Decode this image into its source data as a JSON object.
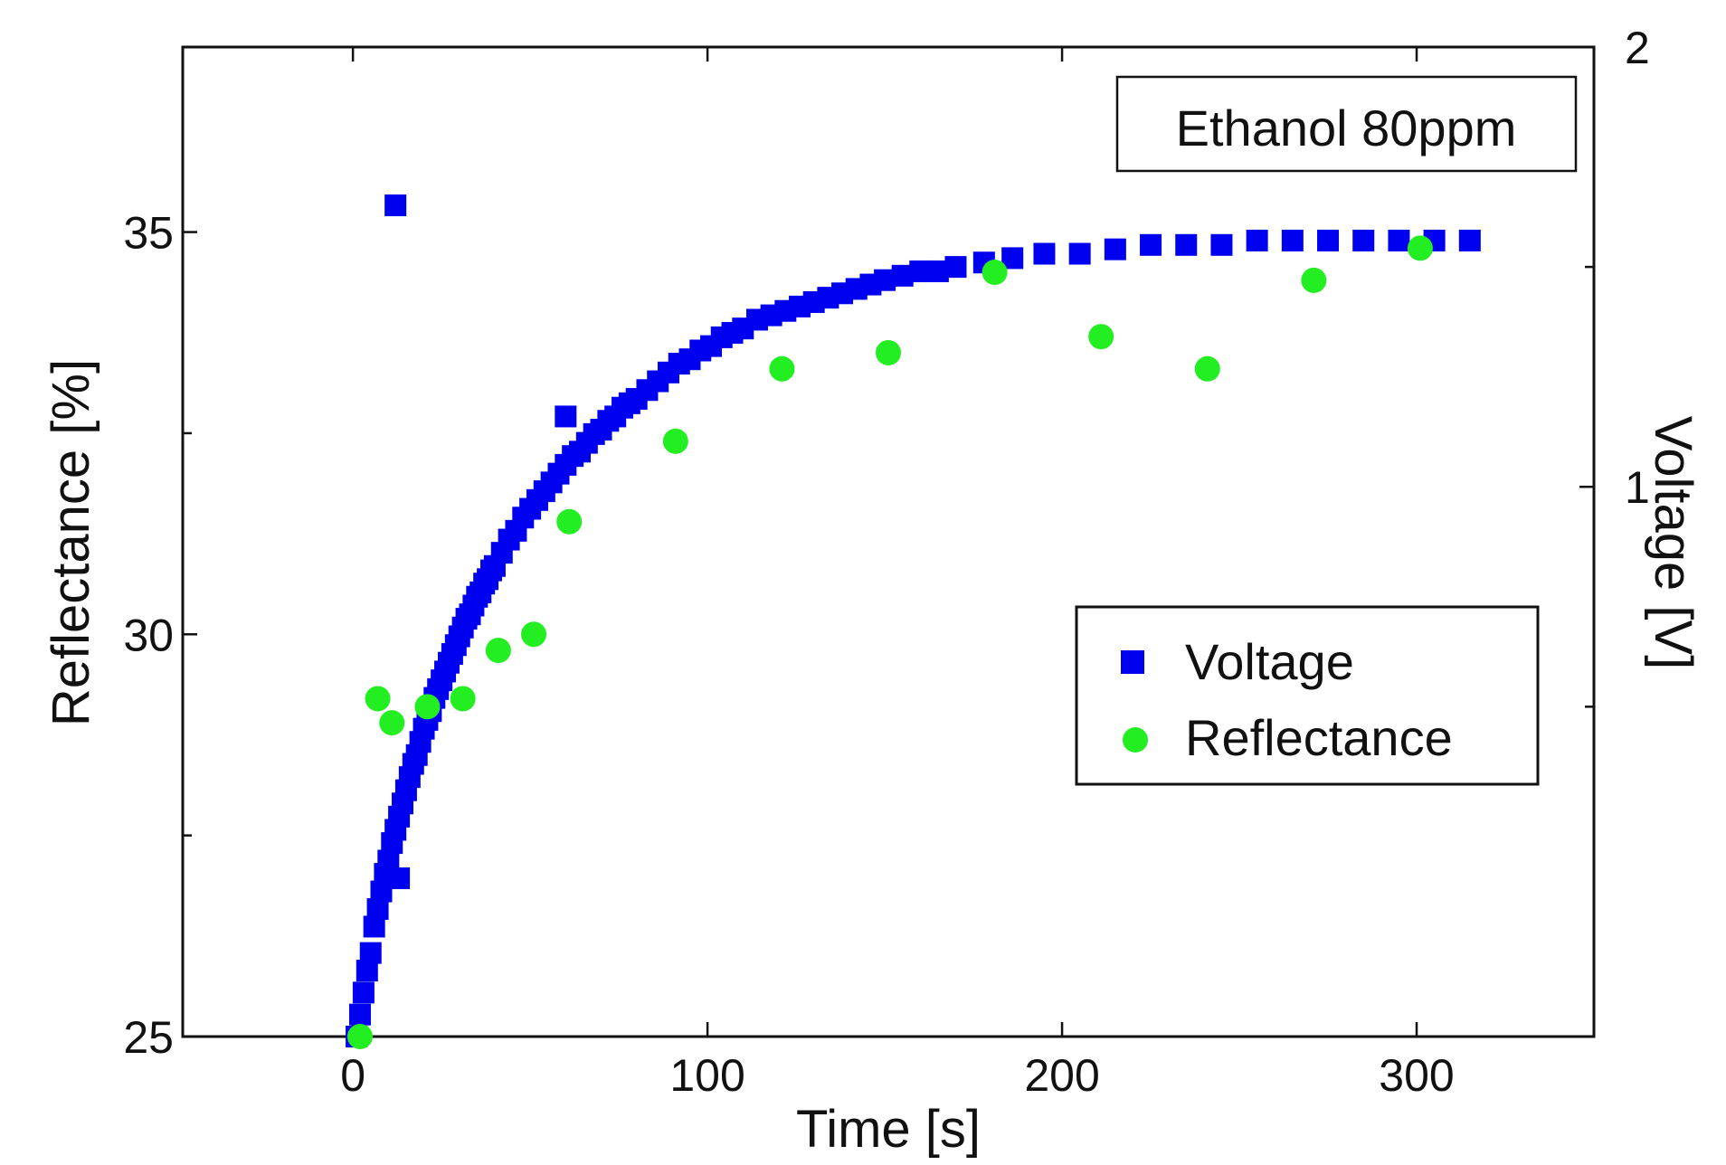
{
  "chart_data": {
    "type": "scatter",
    "title": "",
    "annotation": "Ethanol 80ppm",
    "xlabel": "Time [s]",
    "ylabel": "Reflectance [%]",
    "y2label": "Voltage [V]",
    "xlim": [
      -48,
      350
    ],
    "ylim": [
      25,
      37.3
    ],
    "y2lim": [
      -0.25,
      2
    ],
    "xticks": [
      0,
      100,
      200,
      300
    ],
    "yticks": [
      25,
      30,
      35
    ],
    "yminor_ticks": [
      27.5,
      32.5
    ],
    "y2ticks": [
      1,
      2
    ],
    "y2minor_ticks": [
      0.5,
      1.5
    ],
    "xtick_labels": [
      "0",
      "100",
      "200",
      "300"
    ],
    "ytick_labels": [
      "25",
      "30",
      "35"
    ],
    "y2tick_labels": [
      "1",
      "2"
    ],
    "legend": {
      "position": "right-middle",
      "entries": [
        {
          "label": "Voltage",
          "marker": "square",
          "color": "#0000f0"
        },
        {
          "label": "Reflectance",
          "marker": "circle",
          "color": "#22ee22"
        }
      ]
    },
    "series": [
      {
        "name": "Voltage",
        "axis": "right",
        "marker": "square",
        "color": "#0000f0",
        "x": [
          1,
          2,
          3,
          4,
          5,
          6,
          7,
          8,
          9,
          10,
          11,
          12,
          13,
          14,
          15,
          16,
          17,
          18,
          19,
          20,
          21,
          22,
          23,
          24,
          25,
          26,
          27,
          28,
          29,
          30,
          31,
          32,
          33,
          34,
          35,
          36,
          37,
          38,
          39,
          40,
          42,
          44,
          46,
          48,
          50,
          52,
          54,
          56,
          58,
          60,
          62,
          64,
          66,
          68,
          70,
          72,
          74,
          76,
          78,
          80,
          83,
          86,
          89,
          92,
          95,
          98,
          101,
          104,
          107,
          110,
          114,
          118,
          122,
          126,
          130,
          134,
          138,
          142,
          146,
          150,
          155,
          160,
          165,
          170,
          178,
          186,
          195,
          205,
          215,
          225,
          235,
          245,
          255,
          265,
          275,
          285,
          295,
          305,
          315,
          12,
          60,
          13
        ],
        "y": [
          -0.25,
          -0.2,
          -0.15,
          -0.1,
          -0.06,
          0.0,
          0.04,
          0.08,
          0.12,
          0.15,
          0.19,
          0.22,
          0.25,
          0.28,
          0.31,
          0.34,
          0.37,
          0.39,
          0.42,
          0.45,
          0.47,
          0.49,
          0.52,
          0.54,
          0.56,
          0.58,
          0.6,
          0.62,
          0.64,
          0.66,
          0.68,
          0.7,
          0.71,
          0.73,
          0.75,
          0.76,
          0.78,
          0.79,
          0.81,
          0.82,
          0.85,
          0.88,
          0.9,
          0.93,
          0.95,
          0.97,
          0.99,
          1.01,
          1.03,
          1.05,
          1.07,
          1.08,
          1.1,
          1.12,
          1.13,
          1.15,
          1.16,
          1.18,
          1.19,
          1.2,
          1.22,
          1.24,
          1.26,
          1.28,
          1.29,
          1.31,
          1.32,
          1.34,
          1.35,
          1.36,
          1.38,
          1.39,
          1.4,
          1.41,
          1.42,
          1.43,
          1.44,
          1.45,
          1.46,
          1.47,
          1.48,
          1.49,
          1.49,
          1.5,
          1.51,
          1.52,
          1.53,
          1.53,
          1.54,
          1.55,
          1.55,
          1.55,
          1.56,
          1.56,
          1.56,
          1.56,
          1.56,
          1.56,
          1.56,
          1.64,
          1.16,
          0.11
        ]
      },
      {
        "name": "Reflectance",
        "axis": "left",
        "marker": "circle",
        "color": "#22ee22",
        "x": [
          2,
          7,
          11,
          21,
          31,
          41,
          51,
          61,
          91,
          121,
          151,
          181,
          211,
          241,
          271,
          301
        ],
        "y": [
          25.0,
          29.2,
          28.9,
          29.1,
          29.2,
          29.8,
          30.0,
          31.4,
          32.4,
          33.3,
          33.5,
          34.5,
          33.7,
          33.3,
          34.4,
          34.8
        ]
      }
    ]
  }
}
